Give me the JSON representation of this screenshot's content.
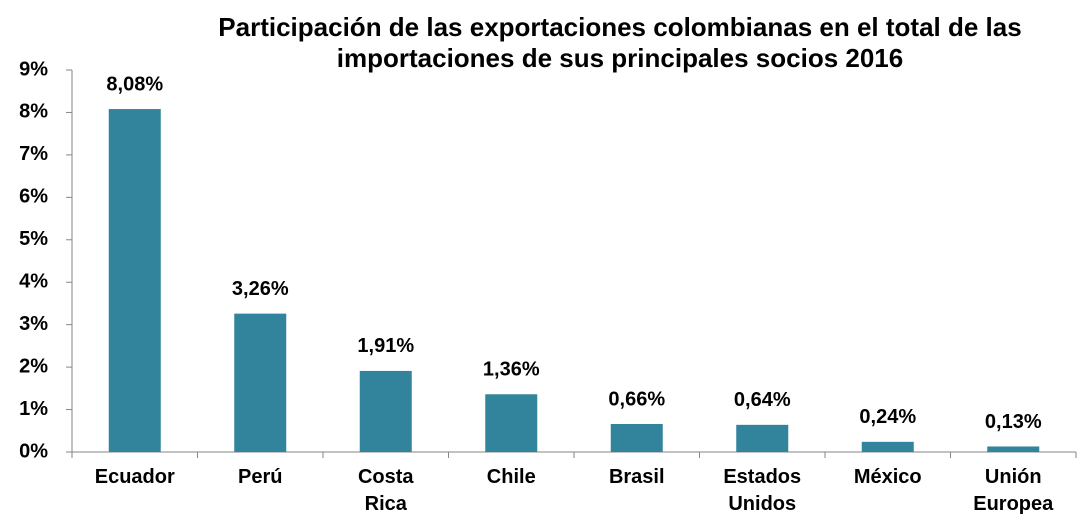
{
  "chart_data": {
    "type": "bar",
    "title": "Participación de las exportaciones colombianas en el total de las importaciones de sus principales socios  2016",
    "categories": [
      "Ecuador",
      "Perú",
      "Costa Rica",
      "Chile",
      "Brasil",
      "Estados Unidos",
      "México",
      "Unión Europea"
    ],
    "values": [
      8.08,
      3.26,
      1.91,
      1.36,
      0.66,
      0.64,
      0.24,
      0.13
    ],
    "value_labels": [
      "8,08%",
      "3,26%",
      "1,91%",
      "1,36%",
      "0,66%",
      "0,64%",
      "0,24%",
      "0,13%"
    ],
    "color": "#31849b",
    "ylim": [
      0,
      9
    ],
    "yticks": [
      {
        "value": 0,
        "label": "0%"
      },
      {
        "value": 1,
        "label": "1%"
      },
      {
        "value": 2,
        "label": "2%"
      },
      {
        "value": 3,
        "label": "3%"
      },
      {
        "value": 4,
        "label": "4%"
      },
      {
        "value": 5,
        "label": "5%"
      },
      {
        "value": 6,
        "label": "6%"
      },
      {
        "value": 7,
        "label": "7%"
      },
      {
        "value": 8,
        "label": "8%"
      },
      {
        "value": 9,
        "label": "9%"
      }
    ],
    "grid": false
  }
}
